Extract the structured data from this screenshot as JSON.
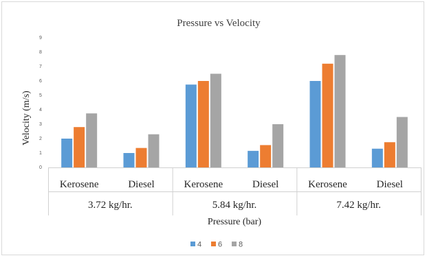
{
  "chart_data": {
    "type": "bar",
    "title": "Pressure vs Velocity",
    "xlabel": "Pressure (bar)",
    "ylabel": "Velocity (m/s)",
    "ylim": [
      0,
      9
    ],
    "yticks": [
      "0",
      "1",
      "2",
      "3",
      "4",
      "5",
      "6",
      "7",
      "8",
      "9"
    ],
    "grid": false,
    "legend_position": "bottom",
    "categories": [
      "Kerosene",
      "Diesel",
      "Kerosene",
      "Diesel",
      "Kerosene",
      "Diesel"
    ],
    "groups": [
      "3.72 kg/hr.",
      "5.84 kg/hr.",
      "7.42 kg/hr."
    ],
    "series": [
      {
        "name": "4",
        "color": "#5b9bd5",
        "values": [
          2.0,
          1.0,
          5.75,
          1.15,
          6.0,
          1.3
        ]
      },
      {
        "name": "6",
        "color": "#ed7d31",
        "values": [
          2.8,
          1.35,
          6.0,
          1.55,
          7.2,
          1.75
        ]
      },
      {
        "name": "8",
        "color": "#a5a5a5",
        "values": [
          3.75,
          2.3,
          6.5,
          3.0,
          7.8,
          3.5
        ]
      }
    ]
  }
}
